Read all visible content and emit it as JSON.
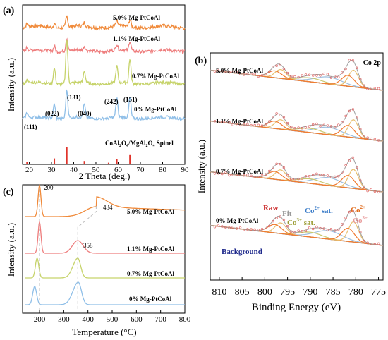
{
  "colors": {
    "s50": "#f08a3a",
    "s11": "#ee7d7d",
    "s07": "#c6d36a",
    "s00": "#8fbfe8",
    "ref": "#e0332a",
    "raw": "#e06060",
    "fit": "#a0a0a0",
    "co2": "#7aaad8",
    "co2sat": "#9ec0e0",
    "co3": "#e8c070",
    "co3sat": "#c8c870",
    "bg": "#1f2a8c",
    "peakOrange": "#f07a30",
    "peakSalmon": "#e88a8a"
  },
  "panel_a": {
    "letter": "(a)",
    "ylabel": "Intensity (a.u.)",
    "xlabel": "2 Theta (deg.)",
    "xticks": [
      "20",
      "30",
      "40",
      "50",
      "60",
      "70",
      "80",
      "90"
    ],
    "series_labels": [
      "5.0% Mg-PtCoAl",
      "1.1% Mg-PtCoAl",
      "0.7% Mg-PtCoAl",
      "0% Mg-PtCoAl"
    ],
    "reference_label_parts": [
      "CoAl",
      "2",
      "O",
      "4",
      "/MgAl",
      "2",
      "O",
      "4",
      " Spinel"
    ],
    "peak_labels": [
      "(111)",
      "(022)",
      "(131)",
      "(040)",
      "(242)",
      "(151)"
    ]
  },
  "panel_b": {
    "letter": "(b)",
    "corner_label": "Co 2p",
    "ylabel": "Intensity (a.u.)",
    "xlabel": "Binding Energy (eV)",
    "xticks": [
      "810",
      "805",
      "800",
      "795",
      "790",
      "785",
      "780",
      "775"
    ],
    "series_labels": [
      "5.0% Mg-PtCoAl",
      "1.1% Mg-PtCoAl",
      "0.7% Mg-PtCoAl",
      "0% Mg-PtCoAl"
    ],
    "legend": {
      "raw": "Raw",
      "fit": "Fit",
      "co3sat_base": "Co",
      "co3sat_sup": "3+",
      "co3sat_tail": " sat.",
      "co2sat_base": "Co",
      "co2sat_sup": "2+",
      "co2sat_tail": " sat.",
      "co2_base": "Co",
      "co2_sup": "2+",
      "co3_base": "Co",
      "co3_sup": "3+",
      "background": "Background"
    }
  },
  "panel_c": {
    "letter": "(c)",
    "ylabel": "Intensity (a.u.)",
    "xlabel": "Temperature (°C)",
    "xticks": [
      "200",
      "300",
      "400",
      "500",
      "600",
      "700",
      "800"
    ],
    "series_labels": [
      "5.0% Mg-PtCoAl",
      "1.1% Mg-PtCoAl",
      "0.7% Mg-PtCoAl",
      "0% Mg-PtCoAl"
    ],
    "annotations": [
      "200",
      "434",
      "358"
    ]
  },
  "chart_data": [
    {
      "panel": "(a)",
      "type": "line",
      "xlabel": "2 Theta (deg.)",
      "ylabel": "Intensity (a.u.)",
      "xlim": [
        17,
        90
      ],
      "series": [
        {
          "name": "5.0% Mg-PtCoAl",
          "peaks": [
            [
              19,
              0.4
            ],
            [
              31.3,
              0.6
            ],
            [
              36.9,
              1.6
            ],
            [
              44.8,
              0.5
            ],
            [
              59.4,
              0.7
            ],
            [
              65.3,
              1.0
            ]
          ]
        },
        {
          "name": "1.1% Mg-PtCoAl",
          "peaks": [
            [
              19,
              0.5
            ],
            [
              31.3,
              0.8
            ],
            [
              36.9,
              2.0
            ],
            [
              44.8,
              0.6
            ],
            [
              59.4,
              0.9
            ],
            [
              65.3,
              1.5
            ]
          ]
        },
        {
          "name": "0.7% Mg-PtCoAl",
          "peaks": [
            [
              19,
              0.6
            ],
            [
              31.3,
              2.8
            ],
            [
              36.9,
              7.8
            ],
            [
              44.8,
              2.1
            ],
            [
              59.4,
              3.0
            ],
            [
              65.3,
              4.3
            ]
          ]
        },
        {
          "name": "0% Mg-PtCoAl",
          "peaks": [
            [
              19,
              0.9
            ],
            [
              31.3,
              2.6
            ],
            [
              36.9,
              5.0
            ],
            [
              44.8,
              2.3
            ],
            [
              59.4,
              3.4
            ],
            [
              65.3,
              3.6
            ]
          ]
        }
      ],
      "reference_peaks": [
        [
          19.0,
          0.15
        ],
        [
          31.3,
          0.35
        ],
        [
          36.9,
          1.0
        ],
        [
          44.8,
          0.2
        ],
        [
          55.7,
          0.1
        ],
        [
          59.4,
          0.3
        ],
        [
          65.3,
          0.55
        ]
      ]
    },
    {
      "panel": "(b)",
      "type": "line",
      "xlabel": "Binding Energy (eV)",
      "ylabel": "Intensity (a.u.)",
      "xlim": [
        812,
        774
      ],
      "series": [
        {
          "name": "5.0% Mg-PtCoAl",
          "components": {
            "Co3+": [
              796.0,
              780.0
            ],
            "Co2+": [
              797.5,
              781.5
            ],
            "Co2+ sat.": [
              786.0
            ],
            "Co3+ sat.": [
              790.0
            ]
          }
        },
        {
          "name": "1.1% Mg-PtCoAl",
          "components": {
            "Co3+": [
              796.0,
              780.0
            ],
            "Co2+": [
              797.5,
              781.5
            ],
            "Co2+ sat.": [
              786.0
            ],
            "Co3+ sat.": [
              790.0
            ]
          }
        },
        {
          "name": "0.7% Mg-PtCoAl",
          "components": {
            "Co3+": [
              796.0,
              780.0
            ],
            "Co2+": [
              797.5,
              781.5
            ],
            "Co2+ sat.": [
              786.0
            ],
            "Co3+ sat.": [
              790.0
            ]
          }
        },
        {
          "name": "0% Mg-PtCoAl",
          "components": {
            "Co3+": [
              796.0,
              780.0
            ],
            "Co2+": [
              797.5,
              781.5
            ],
            "Co2+ sat.": [
              786.0
            ],
            "Co3+ sat.": [
              790.0
            ]
          }
        }
      ]
    },
    {
      "panel": "(c)",
      "type": "line",
      "xlabel": "Temperature (°C)",
      "ylabel": "Intensity (a.u.)",
      "xlim": [
        130,
        800
      ],
      "series": [
        {
          "name": "5.0% Mg-PtCoAl",
          "peaks": [
            [
              200,
              1.0
            ],
            [
              434,
              0.35
            ]
          ]
        },
        {
          "name": "1.1% Mg-PtCoAl",
          "peaks": [
            [
              200,
              0.95
            ],
            [
              358,
              0.45
            ]
          ]
        },
        {
          "name": "0.7% Mg-PtCoAl",
          "peaks": [
            [
              190,
              0.75
            ],
            [
              358,
              0.75
            ]
          ]
        },
        {
          "name": "0% Mg-PtCoAl",
          "peaks": [
            [
              180,
              0.75
            ],
            [
              360,
              0.85
            ]
          ]
        }
      ]
    }
  ]
}
